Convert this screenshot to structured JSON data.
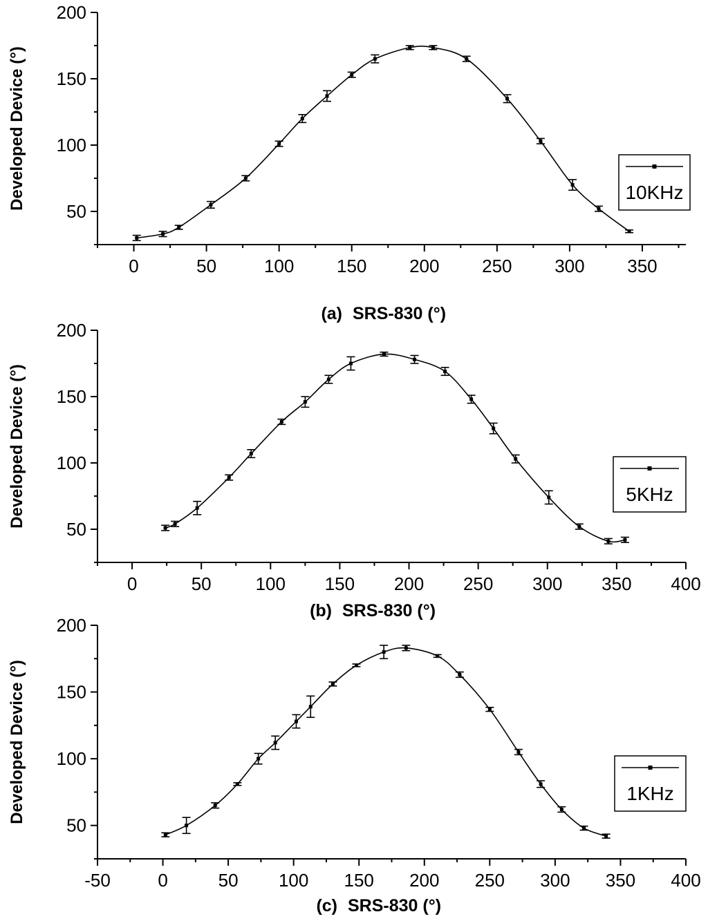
{
  "chart_data": [
    {
      "type": "line",
      "panel_label": "(a)",
      "xlabel": "SRS-830 (°)",
      "ylabel": "Developed Device  (°)",
      "xlim": [
        -25,
        380
      ],
      "ylim": [
        25,
        200
      ],
      "x_ticks": [
        0,
        50,
        100,
        150,
        200,
        250,
        300,
        350
      ],
      "y_ticks": [
        50,
        100,
        150,
        200
      ],
      "legend": "top-right",
      "series": [
        {
          "name": "10KHz",
          "x": [
            2,
            20,
            31,
            53,
            77,
            100,
            116,
            133,
            150,
            166,
            190,
            206,
            229,
            257,
            280,
            302,
            320,
            341
          ],
          "y": [
            30,
            33,
            38,
            55,
            75,
            101,
            120,
            137,
            153,
            165,
            173.5,
            173.5,
            165,
            135,
            103,
            70,
            52,
            35
          ],
          "err": [
            2,
            2,
            1.5,
            2.5,
            2,
            2,
            3,
            4,
            2,
            3,
            1.5,
            1.5,
            2,
            3,
            2,
            4,
            2,
            1
          ]
        }
      ]
    },
    {
      "type": "line",
      "panel_label": "(b)",
      "xlabel": "SRS-830 (°)",
      "ylabel": "Developed Device  (°)",
      "xlim": [
        -25,
        400
      ],
      "ylim": [
        25,
        200
      ],
      "x_ticks": [
        0,
        50,
        100,
        150,
        200,
        250,
        300,
        350,
        400
      ],
      "y_ticks": [
        50,
        100,
        150,
        200
      ],
      "legend": "right",
      "series": [
        {
          "name": "5KHz",
          "x": [
            24,
            31,
            47,
            70,
            86,
            108,
            125,
            142,
            158,
            182,
            204,
            226,
            245,
            261,
            277,
            301,
            323,
            344,
            356
          ],
          "y": [
            51,
            54,
            66,
            89,
            107,
            131,
            146,
            163,
            175,
            182,
            178,
            169,
            148,
            126,
            103,
            74,
            52,
            41,
            42
          ],
          "err": [
            2,
            2,
            5,
            2,
            3,
            2,
            4,
            3,
            5,
            1.5,
            3,
            3,
            3,
            4,
            3,
            5,
            2,
            2,
            2
          ]
        }
      ]
    },
    {
      "type": "line",
      "panel_label": "(c)",
      "xlabel": "SRS-830 (°)",
      "ylabel": "Developed Device  (°)",
      "xlim": [
        -50,
        400
      ],
      "ylim": [
        25,
        200
      ],
      "x_ticks": [
        -50,
        0,
        50,
        100,
        150,
        200,
        250,
        300,
        350,
        400
      ],
      "y_ticks": [
        50,
        100,
        150,
        200
      ],
      "legend": "right",
      "series": [
        {
          "name": "1KHz",
          "x": [
            2,
            18,
            40,
            57,
            73,
            86,
            102,
            113,
            130,
            148,
            169,
            186,
            210,
            227,
            250,
            272,
            289,
            305,
            322,
            339
          ],
          "y": [
            43,
            50,
            65,
            81,
            100,
            112,
            128,
            139,
            156,
            170,
            180,
            183,
            177,
            163,
            137,
            105,
            81,
            62,
            48,
            42
          ],
          "err": [
            1.5,
            6,
            2,
            1,
            4,
            5,
            5,
            8,
            1.5,
            1,
            5,
            2,
            1,
            2,
            1.5,
            2,
            2.5,
            2,
            1.5,
            1.5
          ]
        }
      ]
    }
  ]
}
